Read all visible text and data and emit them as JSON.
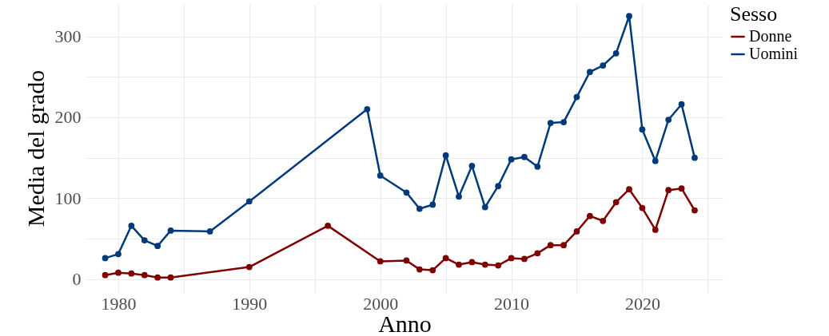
{
  "chart_data": {
    "type": "line",
    "xlabel": "Anno",
    "ylabel": "Media del grado",
    "legend_title": "Sesso",
    "legend": "right",
    "grid": true,
    "marker": "circle",
    "line_style": "solid",
    "xlim": [
      1977.5,
      2026.2
    ],
    "ylim": [
      -16,
      340
    ],
    "xticks": [
      1980,
      {
        "value": 1985,
        "label": null
      },
      1990,
      {
        "value": 1995,
        "label": null
      },
      2000,
      {
        "value": 2005,
        "label": null
      },
      2010,
      {
        "value": 2015,
        "label": null
      },
      2020,
      {
        "value": 2025,
        "label": null
      }
    ],
    "yticks": [
      0,
      {
        "value": 50,
        "label": null
      },
      100,
      {
        "value": 150,
        "label": null
      },
      200,
      {
        "value": 250,
        "label": null
      },
      300
    ],
    "series": [
      {
        "name": "Donne",
        "color": "#7f0000",
        "x": [
          1979,
          1980,
          1981,
          1982,
          1983,
          1984,
          1990,
          1996,
          2000,
          2002,
          2003,
          2004,
          2005,
          2006,
          2007,
          2008,
          2009,
          2010,
          2011,
          2012,
          2013,
          2014,
          2015,
          2016,
          2017,
          2018,
          2019,
          2020,
          2021,
          2022,
          2023,
          2024
        ],
        "values": [
          5,
          8,
          7,
          5,
          2,
          2,
          15,
          66,
          22,
          23,
          12,
          11,
          26,
          18,
          21,
          18,
          17,
          26,
          25,
          32,
          42,
          42,
          59,
          78,
          72,
          95,
          111,
          88,
          61,
          110,
          112,
          85
        ]
      },
      {
        "name": "Uomini",
        "color": "#003a7a",
        "x": [
          1979,
          1980,
          1981,
          1982,
          1983,
          1984,
          1987,
          1990,
          1999,
          2000,
          2002,
          2003,
          2004,
          2005,
          2006,
          2007,
          2008,
          2009,
          2010,
          2011,
          2012,
          2013,
          2014,
          2015,
          2016,
          2017,
          2018,
          2019,
          2020,
          2021,
          2022,
          2023,
          2024
        ],
        "values": [
          26,
          31,
          66,
          48,
          41,
          60,
          59,
          96,
          210,
          128,
          107,
          87,
          92,
          153,
          102,
          140,
          89,
          115,
          148,
          151,
          139,
          193,
          194,
          225,
          256,
          264,
          279,
          325,
          185,
          146,
          197,
          216,
          150
        ]
      }
    ]
  }
}
